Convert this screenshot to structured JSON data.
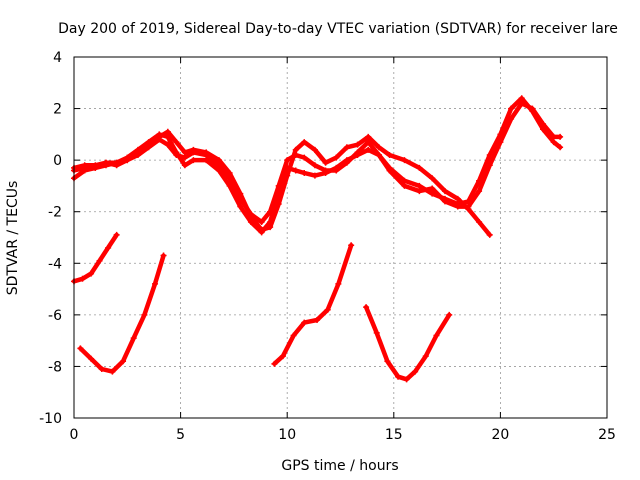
{
  "chart_data": {
    "type": "scatter",
    "title": "Day 200 of 2019, Sidereal Day-to-day VTEC variation (SDTVAR) for receiver lare",
    "xlabel": "GPS time / hours",
    "ylabel": "SDTVAR / TECUs",
    "xlim": [
      0,
      25
    ],
    "ylim": [
      -10,
      4
    ],
    "xticks": [
      0,
      5,
      10,
      15,
      20,
      25
    ],
    "yticks": [
      -10,
      -8,
      -6,
      -4,
      -2,
      0,
      2,
      4
    ],
    "grid": true,
    "legend": "none",
    "series": [
      {
        "name": "upper-a",
        "color": "#ff0000",
        "points": [
          [
            0,
            -0.7
          ],
          [
            0.5,
            -0.4
          ],
          [
            1,
            -0.3
          ],
          [
            1.5,
            -0.2
          ],
          [
            2,
            -0.1
          ],
          [
            2.5,
            0.0
          ],
          [
            3,
            0.3
          ],
          [
            3.5,
            0.6
          ],
          [
            4,
            0.9
          ],
          [
            4.4,
            1.1
          ],
          [
            4.8,
            0.7
          ],
          [
            5.2,
            0.3
          ],
          [
            5.6,
            0.4
          ],
          [
            6.2,
            0.3
          ],
          [
            6.8,
            0.0
          ],
          [
            7.3,
            -0.5
          ],
          [
            7.8,
            -1.3
          ],
          [
            8.3,
            -2.2
          ],
          [
            8.8,
            -2.7
          ],
          [
            9.2,
            -2.6
          ],
          [
            9.6,
            -1.7
          ],
          [
            10.0,
            -0.6
          ],
          [
            10.4,
            0.4
          ],
          [
            10.8,
            0.7
          ],
          [
            11.3,
            0.4
          ],
          [
            11.8,
            -0.1
          ],
          [
            12.3,
            0.1
          ],
          [
            12.8,
            0.5
          ],
          [
            13.3,
            0.6
          ],
          [
            13.8,
            0.9
          ],
          [
            14.3,
            0.5
          ],
          [
            14.8,
            0.2
          ],
          [
            15.5,
            0.0
          ],
          [
            16.2,
            -0.3
          ],
          [
            16.8,
            -0.7
          ],
          [
            17.4,
            -1.2
          ],
          [
            18.0,
            -1.5
          ],
          [
            18.5,
            -1.9
          ],
          [
            19.0,
            -2.4
          ],
          [
            19.5,
            -2.9
          ]
        ]
      },
      {
        "name": "upper-b",
        "color": "#ff0000",
        "points": [
          [
            0,
            -0.4
          ],
          [
            0.5,
            -0.3
          ],
          [
            1,
            -0.3
          ],
          [
            1.5,
            -0.1
          ],
          [
            2,
            -0.1
          ],
          [
            2.5,
            0.1
          ],
          [
            3,
            0.4
          ],
          [
            3.5,
            0.7
          ],
          [
            4,
            1.0
          ],
          [
            4.4,
            0.9
          ],
          [
            4.8,
            0.3
          ],
          [
            5.2,
            -0.2
          ],
          [
            5.6,
            0.0
          ],
          [
            6.2,
            0.0
          ],
          [
            6.8,
            -0.4
          ],
          [
            7.3,
            -1.0
          ],
          [
            7.8,
            -1.8
          ],
          [
            8.3,
            -2.4
          ],
          [
            8.8,
            -2.8
          ],
          [
            9.2,
            -2.4
          ],
          [
            9.6,
            -1.3
          ],
          [
            10.0,
            -0.3
          ],
          [
            10.4,
            -0.4
          ],
          [
            10.8,
            -0.5
          ],
          [
            11.3,
            -0.6
          ],
          [
            11.8,
            -0.5
          ],
          [
            12.3,
            -0.3
          ],
          [
            12.8,
            0.0
          ],
          [
            13.3,
            0.2
          ],
          [
            13.8,
            0.4
          ],
          [
            14.3,
            0.2
          ],
          [
            14.8,
            -0.3
          ],
          [
            15.5,
            -0.8
          ],
          [
            16.2,
            -1.0
          ],
          [
            16.8,
            -1.3
          ],
          [
            17.4,
            -1.5
          ],
          [
            18.0,
            -1.7
          ],
          [
            18.5,
            -1.6
          ],
          [
            19.0,
            -0.8
          ],
          [
            19.5,
            0.2
          ],
          [
            20.0,
            1.0
          ],
          [
            20.5,
            2.0
          ],
          [
            21.0,
            2.4
          ],
          [
            21.5,
            1.9
          ],
          [
            22.0,
            1.2
          ],
          [
            22.5,
            0.7
          ],
          [
            22.8,
            0.5
          ]
        ]
      },
      {
        "name": "upper-c",
        "color": "#ff0000",
        "points": [
          [
            0,
            -0.3
          ],
          [
            0.5,
            -0.2
          ],
          [
            1,
            -0.2
          ],
          [
            1.5,
            -0.1
          ],
          [
            2,
            -0.2
          ],
          [
            2.5,
            0.0
          ],
          [
            3,
            0.2
          ],
          [
            3.5,
            0.5
          ],
          [
            4,
            0.8
          ],
          [
            4.4,
            0.6
          ],
          [
            4.8,
            0.2
          ],
          [
            5.2,
            0.1
          ],
          [
            5.6,
            0.3
          ],
          [
            6.2,
            0.2
          ],
          [
            6.8,
            -0.2
          ],
          [
            7.3,
            -0.7
          ],
          [
            7.8,
            -1.5
          ],
          [
            8.3,
            -2.1
          ],
          [
            8.8,
            -2.4
          ],
          [
            9.2,
            -2.0
          ],
          [
            9.6,
            -1.0
          ],
          [
            10.0,
            0.0
          ],
          [
            10.4,
            0.2
          ],
          [
            10.8,
            0.1
          ],
          [
            11.3,
            -0.2
          ],
          [
            11.8,
            -0.4
          ],
          [
            12.3,
            -0.4
          ],
          [
            12.8,
            -0.1
          ],
          [
            13.3,
            0.3
          ],
          [
            13.8,
            0.7
          ],
          [
            14.3,
            0.2
          ],
          [
            14.8,
            -0.4
          ],
          [
            15.5,
            -1.0
          ],
          [
            16.2,
            -1.2
          ],
          [
            16.8,
            -1.1
          ],
          [
            17.4,
            -1.6
          ],
          [
            18.0,
            -1.8
          ],
          [
            18.5,
            -1.8
          ],
          [
            19.0,
            -1.2
          ],
          [
            19.5,
            -0.2
          ],
          [
            20.0,
            0.7
          ],
          [
            20.5,
            1.6
          ],
          [
            21.0,
            2.2
          ],
          [
            21.5,
            2.0
          ],
          [
            22.0,
            1.4
          ],
          [
            22.5,
            0.9
          ],
          [
            22.8,
            0.9
          ]
        ]
      },
      {
        "name": "lower-seg-1",
        "color": "#ff0000",
        "points": [
          [
            0,
            -4.7
          ],
          [
            0.4,
            -4.6
          ],
          [
            0.8,
            -4.4
          ],
          [
            1.2,
            -3.9
          ],
          [
            1.6,
            -3.4
          ],
          [
            2.0,
            -2.9
          ]
        ]
      },
      {
        "name": "lower-seg-2",
        "color": "#ff0000",
        "points": [
          [
            0.3,
            -7.3
          ],
          [
            0.8,
            -7.7
          ],
          [
            1.3,
            -8.1
          ],
          [
            1.8,
            -8.2
          ],
          [
            2.3,
            -7.8
          ],
          [
            2.8,
            -6.9
          ],
          [
            3.3,
            -6.0
          ],
          [
            3.8,
            -4.8
          ],
          [
            4.2,
            -3.7
          ]
        ]
      },
      {
        "name": "lower-seg-3",
        "color": "#ff0000",
        "points": [
          [
            9.4,
            -7.9
          ],
          [
            9.8,
            -7.6
          ],
          [
            10.3,
            -6.8
          ],
          [
            10.8,
            -6.3
          ],
          [
            11.4,
            -6.2
          ],
          [
            11.9,
            -5.8
          ],
          [
            12.4,
            -4.8
          ],
          [
            13.0,
            -3.3
          ]
        ]
      },
      {
        "name": "lower-seg-4",
        "color": "#ff0000",
        "points": [
          [
            13.7,
            -5.7
          ],
          [
            14.2,
            -6.7
          ],
          [
            14.7,
            -7.8
          ],
          [
            15.2,
            -8.4
          ],
          [
            15.6,
            -8.5
          ],
          [
            16.0,
            -8.2
          ],
          [
            16.5,
            -7.6
          ],
          [
            17.0,
            -6.8
          ],
          [
            17.6,
            -6.0
          ]
        ]
      }
    ]
  }
}
